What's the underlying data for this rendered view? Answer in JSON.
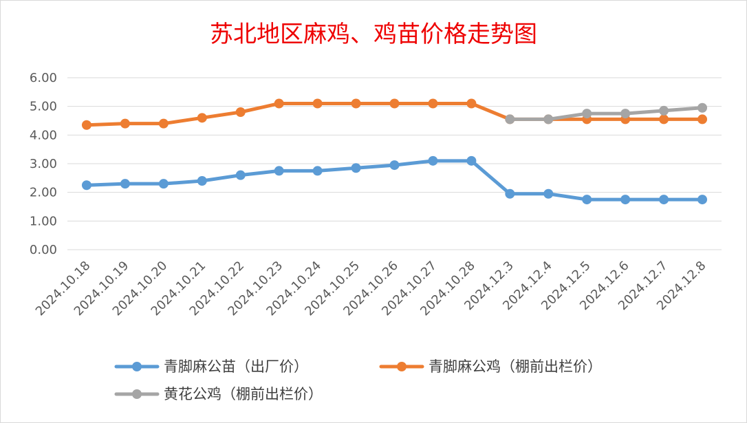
{
  "chart_data": {
    "type": "line",
    "title": "苏北地区麻鸡、鸡苗价格走势图",
    "categories": [
      "2024.10.18",
      "2024.10.19",
      "2024.10.20",
      "2024.10.21",
      "2024.10.22",
      "2024.10.23",
      "2024.10.24",
      "2024.10.25",
      "2024.10.26",
      "2024.10.27",
      "2024.10.28",
      "2024.12.3",
      "2024.12.4",
      "2024.12.5",
      "2024.12.6",
      "2024.12.7",
      "2024.12.8"
    ],
    "y_ticks": [
      "0.00",
      "1.00",
      "2.00",
      "3.00",
      "4.00",
      "5.00",
      "6.00"
    ],
    "ylim": [
      0,
      6
    ],
    "grid": true,
    "legend_position": "bottom",
    "series": [
      {
        "name": "青脚麻公苗（出厂价）",
        "color": "#5b9bd5",
        "values": [
          2.25,
          2.3,
          2.3,
          2.4,
          2.6,
          2.75,
          2.75,
          2.85,
          2.95,
          3.1,
          3.1,
          1.95,
          1.95,
          1.75,
          1.75,
          1.75,
          1.75
        ]
      },
      {
        "name": "青脚麻公鸡（棚前出栏价）",
        "color": "#ed7d31",
        "values": [
          4.35,
          4.4,
          4.4,
          4.6,
          4.8,
          5.1,
          5.1,
          5.1,
          5.1,
          5.1,
          5.1,
          4.55,
          4.55,
          4.55,
          4.55,
          4.55,
          4.55
        ]
      },
      {
        "name": "黄花公鸡（棚前出栏价）",
        "color": "#a5a5a5",
        "values": [
          null,
          null,
          null,
          null,
          null,
          null,
          null,
          null,
          null,
          null,
          null,
          4.55,
          4.55,
          4.75,
          4.75,
          4.85,
          4.95
        ]
      }
    ]
  }
}
